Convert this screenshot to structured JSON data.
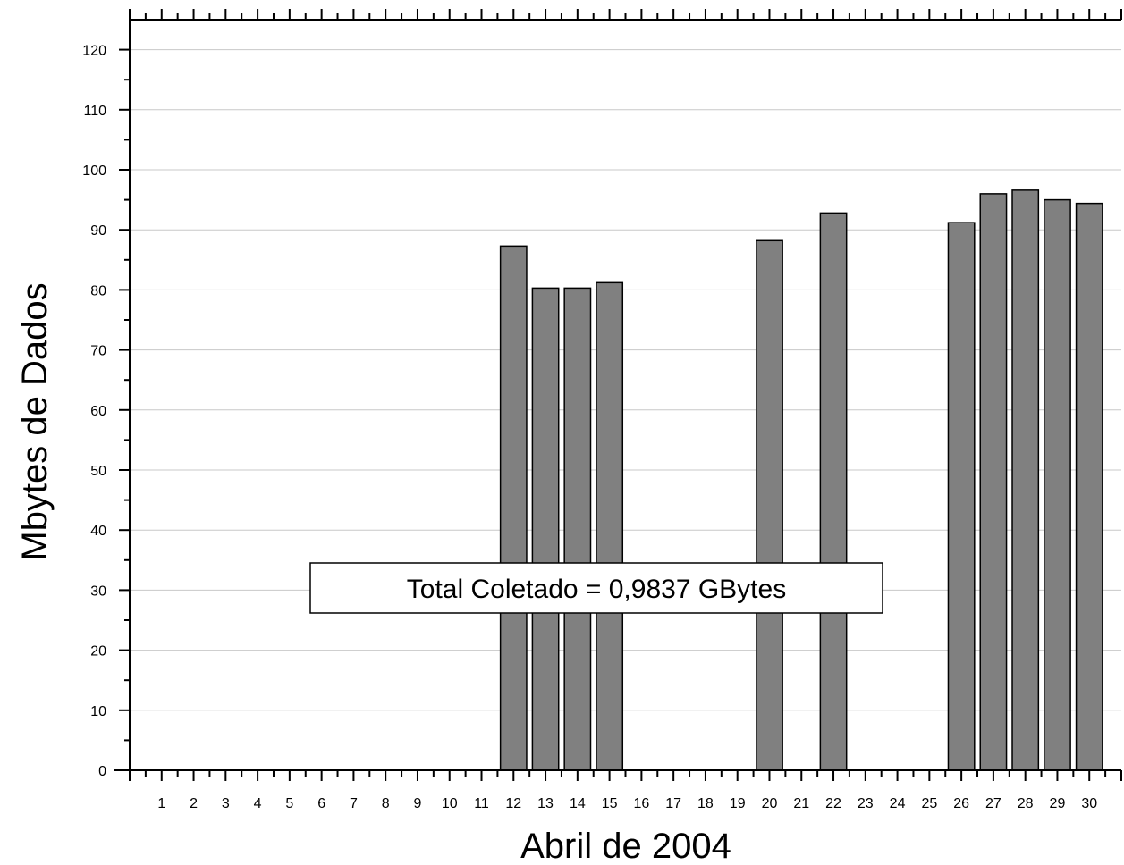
{
  "chart_data": {
    "type": "bar",
    "title": "",
    "xlabel": "Abril de 2004",
    "ylabel": "Mbytes de Dados",
    "ylim": [
      0,
      125
    ],
    "yticks": [
      0,
      10,
      20,
      30,
      40,
      50,
      60,
      70,
      80,
      90,
      100,
      110,
      120
    ],
    "xlim": [
      0,
      31
    ],
    "xticks": [
      1,
      2,
      3,
      4,
      5,
      6,
      7,
      8,
      9,
      10,
      11,
      12,
      13,
      14,
      15,
      16,
      17,
      18,
      19,
      20,
      21,
      22,
      23,
      24,
      25,
      26,
      27,
      28,
      29,
      30
    ],
    "categories": [
      12,
      13,
      14,
      15,
      20,
      22,
      26,
      27,
      28,
      29,
      30
    ],
    "values": [
      87.3,
      80.3,
      80.3,
      81.2,
      88.2,
      92.8,
      91.2,
      96.0,
      96.6,
      95.0,
      94.4
    ],
    "grid": true,
    "bar_color": "#808080",
    "annotation": "Total Coletado = 0,9837 GBytes"
  }
}
